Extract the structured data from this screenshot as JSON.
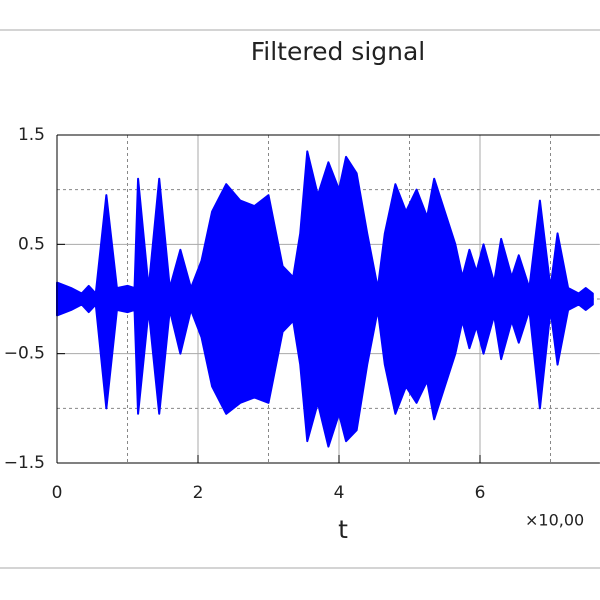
{
  "chart_data": {
    "type": "area",
    "title": "Filtered signal",
    "xlabel": "t",
    "x_multiplier": "×10,00",
    "color": "#0000ff",
    "x": [
      0,
      0.2,
      0.35,
      0.45,
      0.55,
      0.7,
      0.85,
      1.0,
      1.1,
      1.15,
      1.3,
      1.45,
      1.6,
      1.75,
      1.9,
      2.05,
      2.2,
      2.4,
      2.6,
      2.8,
      3.0,
      3.2,
      3.35,
      3.45,
      3.55,
      3.7,
      3.85,
      4.0,
      4.1,
      4.25,
      4.4,
      4.55,
      4.65,
      4.8,
      4.95,
      5.1,
      5.25,
      5.35,
      5.5,
      5.65,
      5.75,
      5.85,
      5.95,
      6.05,
      6.2,
      6.3,
      6.45,
      6.55,
      6.7,
      6.85,
      7.0,
      7.1,
      7.25,
      7.4,
      7.5,
      7.6
    ],
    "y_upper": [
      0.15,
      0.1,
      0.05,
      0.12,
      0.05,
      0.95,
      0.1,
      0.12,
      0.1,
      1.1,
      0.1,
      1.1,
      0.1,
      0.45,
      0.1,
      0.35,
      0.8,
      1.05,
      0.9,
      0.85,
      0.95,
      0.3,
      0.2,
      0.6,
      1.35,
      0.95,
      1.25,
      1.0,
      1.3,
      1.15,
      0.6,
      0.1,
      0.6,
      1.05,
      0.8,
      1.0,
      0.75,
      1.1,
      0.8,
      0.5,
      0.2,
      0.45,
      0.25,
      0.5,
      0.15,
      0.55,
      0.2,
      0.4,
      0.1,
      0.9,
      0.1,
      0.6,
      0.1,
      0.05,
      0.1,
      0.05
    ],
    "y_lower": [
      -0.15,
      -0.1,
      -0.05,
      -0.12,
      -0.05,
      -1.0,
      -0.1,
      -0.12,
      -0.1,
      -1.05,
      -0.1,
      -1.05,
      -0.1,
      -0.5,
      -0.1,
      -0.35,
      -0.8,
      -1.05,
      -0.95,
      -0.9,
      -0.95,
      -0.3,
      -0.2,
      -0.6,
      -1.3,
      -0.95,
      -1.35,
      -1.05,
      -1.3,
      -1.2,
      -0.6,
      -0.1,
      -0.6,
      -1.05,
      -0.8,
      -0.95,
      -0.75,
      -1.1,
      -0.8,
      -0.5,
      -0.2,
      -0.45,
      -0.25,
      -0.5,
      -0.15,
      -0.55,
      -0.2,
      -0.4,
      -0.1,
      -1.0,
      -0.1,
      -0.6,
      -0.1,
      -0.05,
      -0.1,
      -0.05
    ],
    "xlim": [
      0,
      7.7
    ],
    "ylim": [
      -1.5,
      1.5
    ],
    "xticks": [
      0,
      2,
      4,
      6
    ],
    "minor_xticks": [
      1,
      3,
      5,
      7
    ],
    "yticks": [
      {
        "value": 1.5,
        "label": "1.5"
      },
      {
        "value": 0.5,
        "label": "0.5"
      },
      {
        "value": -0.5,
        "label": "−0.5"
      },
      {
        "value": -1.5,
        "label": "−1.5"
      }
    ],
    "minor_yticks": [
      1,
      0,
      -1
    ],
    "grid": true
  }
}
